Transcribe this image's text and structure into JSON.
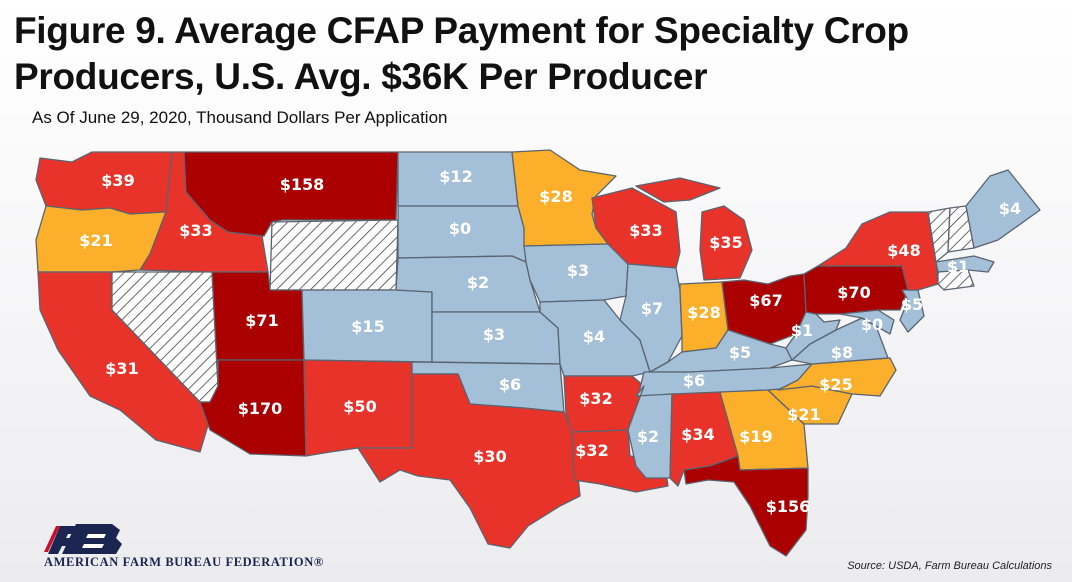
{
  "title": "Figure 9. Average CFAP Payment for Specialty Crop Producers, U.S. Avg. $36K Per Producer",
  "subtitle": "As Of June 29, 2020, Thousand Dollars Per Application",
  "source": "Source: USDA, Farm Bureau Calculations",
  "organization": "AMERICAN FARM BUREAU FEDERATION®",
  "logo_name": "fb-logo",
  "colors": {
    "dark_red": "#aa0000",
    "red": "#e8332a",
    "orange": "#fbaf2a",
    "blue": "#a4c0d8",
    "hatched": "#ffffff"
  },
  "states": {
    "WA": "$39",
    "OR": "$21",
    "CA": "$31",
    "ID": "$33",
    "NV": "",
    "MT": "$158",
    "WY": "",
    "UT": "$71",
    "AZ": "$170",
    "CO": "$15",
    "NM": "$50",
    "ND": "$12",
    "SD": "$0",
    "NE": "$2",
    "KS": "$3",
    "OK": "$6",
    "TX": "$30",
    "MN": "$28",
    "IA": "$3",
    "MO": "$4",
    "AR": "$32",
    "LA": "$32",
    "WI": "$33",
    "IL": "$7",
    "MI": "$35",
    "IN": "$28",
    "OH": "$67",
    "KY": "$5",
    "TN": "$6",
    "MS": "$2",
    "AL": "$34",
    "GA": "$19",
    "FL": "$156",
    "SC": "$21",
    "NC": "$25",
    "VA": "$8",
    "WV": "$1",
    "PA": "$70",
    "NY": "$48",
    "NJ": "$5",
    "MD": "$0",
    "ME": "$4",
    "MA": "$1"
  }
}
